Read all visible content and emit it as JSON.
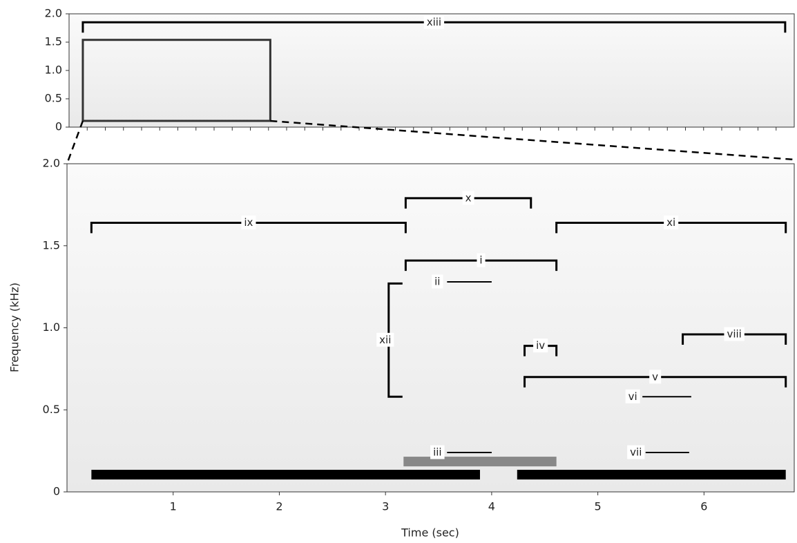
{
  "chart_data": [
    {
      "type": "spectrogram",
      "xlim": [
        0,
        40
      ],
      "xticks": [
        1,
        2,
        3,
        4,
        5,
        6,
        7,
        8,
        9,
        10,
        11,
        12,
        13,
        14,
        15,
        16,
        17,
        18,
        19,
        20,
        21,
        22,
        23,
        24,
        25,
        26,
        27,
        28,
        29,
        30,
        31,
        32,
        33,
        34,
        35,
        36,
        37,
        38,
        39
      ],
      "ylim": [
        0,
        2
      ],
      "yticks": [
        0,
        0.5,
        {
          "value": 1,
          "label": "1.0"
        },
        1.5,
        {
          "value": 2,
          "label": "2.0"
        }
      ],
      "annotations": [
        {
          "style": "bracket",
          "label": "xiii",
          "x": [
            0.76,
            39.5
          ],
          "y": 1.85
        }
      ],
      "zoom_box": {
        "x": [
          0.76,
          11.1
        ],
        "y": [
          0.11,
          1.54
        ]
      }
    },
    {
      "type": "spectrogram",
      "xlabel": "Time (sec)",
      "ylabel": "Frequency (kHz)",
      "xlim": [
        0,
        6.85
      ],
      "xticks": [
        1,
        2,
        3,
        4,
        5,
        6
      ],
      "ylim": [
        0,
        2
      ],
      "yticks": [
        0,
        0.5,
        {
          "value": 1,
          "label": "1.0"
        },
        1.5,
        {
          "value": 2,
          "label": "2.0"
        }
      ],
      "annotations": [
        {
          "style": "bracket",
          "label": "ix",
          "x": [
            0.23,
            3.19
          ],
          "y": 1.64
        },
        {
          "style": "bracket",
          "label": "x",
          "x": [
            3.19,
            4.37
          ],
          "y": 1.79
        },
        {
          "style": "bracket",
          "label": "xi",
          "x": [
            4.61,
            6.77
          ],
          "y": 1.64
        },
        {
          "style": "bracket",
          "label": "i",
          "x": [
            3.19,
            4.61
          ],
          "y": 1.41
        },
        {
          "style": "line",
          "label": "ii",
          "x": [
            3.58,
            4.0
          ],
          "y": 1.28
        },
        {
          "style": "vertical",
          "label": "xii",
          "x": 3.03,
          "y": [
            1.27,
            0.58
          ]
        },
        {
          "style": "bracket",
          "label": "iv",
          "x": [
            4.31,
            4.61
          ],
          "y": 0.89
        },
        {
          "style": "bracket",
          "label": "viii",
          "x": [
            5.8,
            6.77
          ],
          "y": 0.96
        },
        {
          "style": "bracket",
          "label": "v",
          "x": [
            4.31,
            6.77
          ],
          "y": 0.7
        },
        {
          "style": "line",
          "label": "vi",
          "x": [
            5.42,
            5.88
          ],
          "y": 0.58
        },
        {
          "style": "line",
          "label": "vii",
          "x": [
            5.45,
            5.86
          ],
          "y": 0.24
        },
        {
          "style": "line",
          "label": "iii",
          "x": [
            3.58,
            4.0
          ],
          "y": 0.24
        }
      ],
      "bars": [
        {
          "color": "#888888",
          "x": [
            3.17,
            4.61
          ],
          "y": 0.185
        },
        {
          "color": "#000000",
          "x": [
            0.23,
            3.89
          ],
          "y": 0.105
        },
        {
          "color": "#000000",
          "x": [
            4.24,
            6.77
          ],
          "y": 0.105
        }
      ]
    }
  ]
}
